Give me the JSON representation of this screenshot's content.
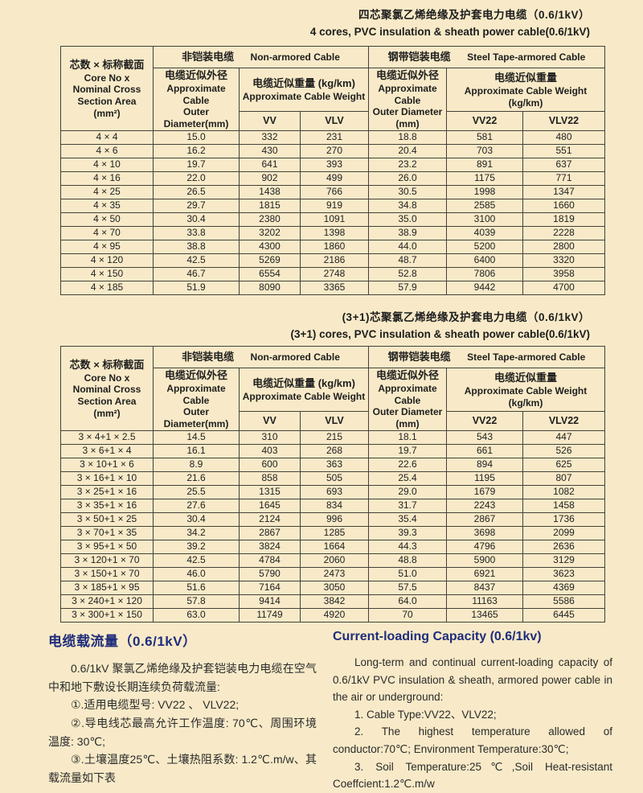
{
  "page_bg": "#f8eac8",
  "accent_navy": "#1f2d7b",
  "table_4core": {
    "title_zh": "四芯聚氯乙烯绝缘及护套电力电缆（0.6/1kV）",
    "title_en": "4 cores, PVC insulation & sheath power cable(0.6/1kV)",
    "header": {
      "spec_zh": "芯数 × 标称截面",
      "spec_en": "Core No x\nNominal Cross\nSection Area\n(mm²)",
      "non_armored_zh": "非铠装电缆",
      "non_armored_en": "Non-armored Cable",
      "armored_zh": "钢带铠装电缆",
      "armored_en": "Steel Tape-armored Cable",
      "od_na_zh": "电缆近似外径",
      "od_na_en": "Approximate Cable\nOuter Diameter(mm)",
      "wt_na_zh": "电缆近似重量 (kg/km)",
      "wt_na_en": "Approximate Cable Weight",
      "od_ar_zh": "电缆近似外径",
      "od_ar_en": "Approximate Cable\nOuter Diameter\n(mm)",
      "wt_ar_zh": "电缆近似重量",
      "wt_ar_en": "Approximate Cable Weight  (kg/km)",
      "col_vv": "VV",
      "col_vlv": "VLV",
      "col_vv22": "VV22",
      "col_vlv22": "VLV22"
    },
    "rows": [
      [
        "4 × 4",
        "15.0",
        "332",
        "231",
        "18.8",
        "581",
        "480"
      ],
      [
        "4 × 6",
        "16.2",
        "430",
        "270",
        "20.4",
        "703",
        "551"
      ],
      [
        "4 × 10",
        "19.7",
        "641",
        "393",
        "23.2",
        "891",
        "637"
      ],
      [
        "4 × 16",
        "22.0",
        "902",
        "499",
        "26.0",
        "1175",
        "771"
      ],
      [
        "4 × 25",
        "26.5",
        "1438",
        "766",
        "30.5",
        "1998",
        "1347"
      ],
      [
        "4 × 35",
        "29.7",
        "1815",
        "919",
        "34.8",
        "2585",
        "1660"
      ],
      [
        "4 × 50",
        "30.4",
        "2380",
        "1091",
        "35.0",
        "3100",
        "1819"
      ],
      [
        "4 × 70",
        "33.8",
        "3202",
        "1398",
        "38.9",
        "4039",
        "2228"
      ],
      [
        "4 × 95",
        "38.8",
        "4300",
        "1860",
        "44.0",
        "5200",
        "2800"
      ],
      [
        "4 × 120",
        "42.5",
        "5269",
        "2186",
        "48.7",
        "6400",
        "3320"
      ],
      [
        "4 × 150",
        "46.7",
        "6554",
        "2748",
        "52.8",
        "7806",
        "3958"
      ],
      [
        "4 × 185",
        "51.9",
        "8090",
        "3365",
        "57.9",
        "9442",
        "4700"
      ]
    ]
  },
  "table_3plus1": {
    "title_zh": "(3+1)芯聚氯乙烯绝缘及护套电力电缆（0.6/1kV）",
    "title_en": "(3+1) cores, PVC insulation & sheath power cable(0.6/1kV)",
    "header": {
      "spec_zh": "芯数 × 标称截面",
      "spec_en": "Core No x\nNominal Cross\nSection Area\n(mm²)",
      "non_armored_zh": "非铠装电缆",
      "non_armored_en": "Non-armored Cable",
      "armored_zh": "钢带铠装电缆",
      "armored_en": "Steel Tape-armored Cable",
      "od_na_zh": "电缆近似外径",
      "od_na_en": "Approximate Cable\nOuter Diameter(mm)",
      "wt_na_zh": "电缆近似重量 (kg/km)",
      "wt_na_en": "Approximate Cable Weight",
      "od_ar_zh": "电缆近似外径",
      "od_ar_en": "Approximate Cable\nOuter Diameter\n(mm)",
      "wt_ar_zh": "电缆近似重量",
      "wt_ar_en": "Approximate Cable Weight  (kg/km)",
      "col_vv": "VV",
      "col_vlv": "VLV",
      "col_vv22": "VV22",
      "col_vlv22": "VLV22"
    },
    "rows": [
      [
        "3 × 4+1 × 2.5",
        "14.5",
        "310",
        "215",
        "18.1",
        "543",
        "447"
      ],
      [
        "3 × 6+1 × 4",
        "16.1",
        "403",
        "268",
        "19.7",
        "661",
        "526"
      ],
      [
        "3 × 10+1 × 6",
        "8.9",
        "600",
        "363",
        "22.6",
        "894",
        "625"
      ],
      [
        "3 × 16+1 × 10",
        "21.6",
        "858",
        "505",
        "25.4",
        "1195",
        "807"
      ],
      [
        "3 × 25+1 × 16",
        "25.5",
        "1315",
        "693",
        "29.0",
        "1679",
        "1082"
      ],
      [
        "3 × 35+1 × 16",
        "27.6",
        "1645",
        "834",
        "31.7",
        "2243",
        "1458"
      ],
      [
        "3 × 50+1 × 25",
        "30.4",
        "2124",
        "996",
        "35.4",
        "2867",
        "1736"
      ],
      [
        "3 × 70+1 × 35",
        "34.2",
        "2867",
        "1285",
        "39.3",
        "3698",
        "2099"
      ],
      [
        "3 × 95+1 × 50",
        "39.2",
        "3824",
        "1664",
        "44.3",
        "4796",
        "2636"
      ],
      [
        "3 × 120+1 × 70",
        "42.5",
        "4784",
        "2060",
        "48.8",
        "5900",
        "3129"
      ],
      [
        "3 × 150+1 × 70",
        "46.0",
        "5790",
        "2473",
        "51.0",
        "6921",
        "3623"
      ],
      [
        "3 × 185+1 × 95",
        "51.6",
        "7164",
        "3050",
        "57.5",
        "8437",
        "4369"
      ],
      [
        "3 × 240+1 × 120",
        "57.8",
        "9414",
        "3842",
        "64.0",
        "11163",
        "5586"
      ],
      [
        "3 × 300+1 × 150",
        "63.0",
        "11749",
        "4920",
        "70",
        "13465",
        "6445"
      ]
    ]
  },
  "capacity_zh": {
    "heading": "电缆载流量（0.6/1kV）",
    "p1": "0.6/1kV 聚氯乙烯绝缘及护套铠装电力电缆在空气中和地下敷设长期连续负荷载流量:",
    "item1": "①.适用电缆型号: VV22 、 VLV22;",
    "item2": "②.导电线芯最高允许工作温度: 70℃、周围环境温度: 30℃;",
    "item3": "③.土壤温度25℃、土壤热阻系数: 1.2℃.m/w、其载流量如下表"
  },
  "capacity_en": {
    "heading": "Current-loading Capacity (0.6/1kv)",
    "p1": "Long-term and continual current-loading capacity of 0.6/1kV PVC insulation & sheath, armored power cable in the air or underground:",
    "item1": "1.  Cable Type:VV22、VLV22;",
    "item2": "2.  The highest temperature allowed of conductor:70℃; Environment Temperature:30℃;",
    "item3": "3.  Soil Temperature:25℃,Soil Heat-resistant Coeffcient:1.2℃.m/w"
  }
}
